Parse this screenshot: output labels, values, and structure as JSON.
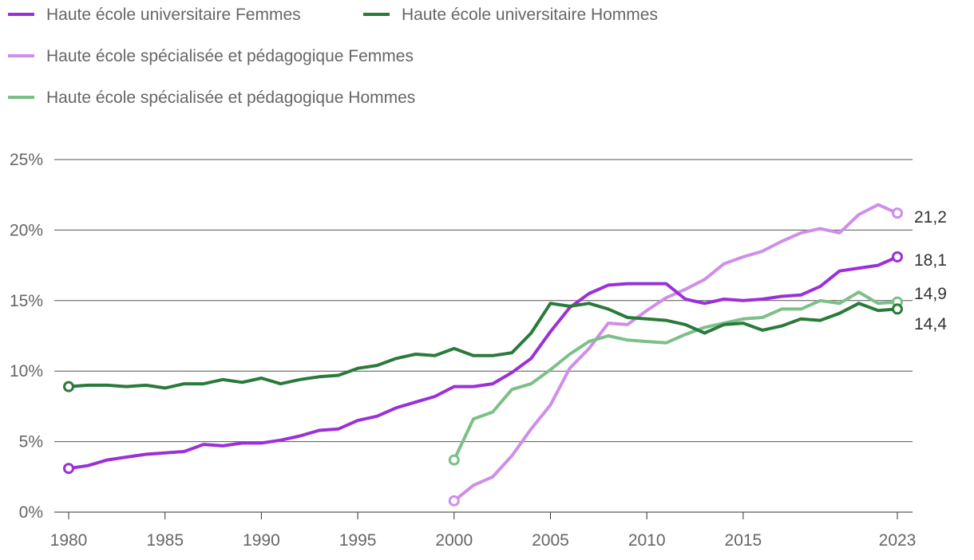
{
  "chart_data": {
    "type": "line",
    "title": "",
    "xlabel": "",
    "ylabel": "",
    "ylim": [
      0,
      25
    ],
    "xlim": [
      1980,
      2023
    ],
    "y_ticks": [
      {
        "value": 0,
        "label": "0%"
      },
      {
        "value": 5,
        "label": "5%"
      },
      {
        "value": 10,
        "label": "10%"
      },
      {
        "value": 15,
        "label": "15%"
      },
      {
        "value": 20,
        "label": "20%"
      },
      {
        "value": 25,
        "label": "25%"
      }
    ],
    "x_ticks": [
      {
        "value": 1980,
        "label": "1980"
      },
      {
        "value": 1985,
        "label": "1985"
      },
      {
        "value": 1990,
        "label": "1990"
      },
      {
        "value": 1995,
        "label": "1995"
      },
      {
        "value": 2000,
        "label": "2000"
      },
      {
        "value": 2005,
        "label": "2005"
      },
      {
        "value": 2010,
        "label": "2010"
      },
      {
        "value": 2015,
        "label": "2015"
      },
      {
        "value": 2023,
        "label": "2023"
      }
    ],
    "grid": true,
    "legend_position": "top-left",
    "series": [
      {
        "name": "Haute école universitaire Femmes",
        "color": "#9b30d9",
        "end_label": "18,1",
        "x": [
          1980,
          1981,
          1982,
          1983,
          1984,
          1985,
          1986,
          1987,
          1988,
          1989,
          1990,
          1991,
          1992,
          1993,
          1994,
          1995,
          1996,
          1997,
          1998,
          1999,
          2000,
          2001,
          2002,
          2003,
          2004,
          2005,
          2006,
          2007,
          2008,
          2009,
          2010,
          2011,
          2012,
          2013,
          2014,
          2015,
          2016,
          2017,
          2018,
          2019,
          2020,
          2021,
          2022,
          2023
        ],
        "y": [
          3.1,
          3.3,
          3.7,
          3.9,
          4.1,
          4.2,
          4.3,
          4.8,
          4.7,
          4.9,
          4.9,
          5.1,
          5.4,
          5.8,
          5.9,
          6.5,
          6.8,
          7.4,
          7.8,
          8.2,
          8.9,
          8.9,
          9.1,
          9.9,
          10.9,
          12.8,
          14.5,
          15.5,
          16.1,
          16.2,
          16.2,
          16.2,
          15.1,
          14.8,
          15.1,
          15.0,
          15.1,
          15.3,
          15.4,
          16.0,
          17.1,
          17.3,
          17.5,
          18.1
        ]
      },
      {
        "name": "Haute école universitaire Hommes",
        "color": "#2a7a3b",
        "end_label": "14,4",
        "x": [
          1980,
          1981,
          1982,
          1983,
          1984,
          1985,
          1986,
          1987,
          1988,
          1989,
          1990,
          1991,
          1992,
          1993,
          1994,
          1995,
          1996,
          1997,
          1998,
          1999,
          2000,
          2001,
          2002,
          2003,
          2004,
          2005,
          2006,
          2007,
          2008,
          2009,
          2010,
          2011,
          2012,
          2013,
          2014,
          2015,
          2016,
          2017,
          2018,
          2019,
          2020,
          2021,
          2022,
          2023
        ],
        "y": [
          8.9,
          9.0,
          9.0,
          8.9,
          9.0,
          8.8,
          9.1,
          9.1,
          9.4,
          9.2,
          9.5,
          9.1,
          9.4,
          9.6,
          9.7,
          10.2,
          10.4,
          10.9,
          11.2,
          11.1,
          11.6,
          11.1,
          11.1,
          11.3,
          12.7,
          14.8,
          14.6,
          14.8,
          14.4,
          13.8,
          13.7,
          13.6,
          13.3,
          12.7,
          13.3,
          13.4,
          12.9,
          13.2,
          13.7,
          13.6,
          14.1,
          14.8,
          14.3,
          14.4
        ]
      },
      {
        "name": "Haute école spécialisée et pédagogique Femmes",
        "color": "#cf8ee8",
        "end_label": "21,2",
        "x": [
          2000,
          2001,
          2002,
          2003,
          2004,
          2005,
          2006,
          2007,
          2008,
          2009,
          2010,
          2011,
          2012,
          2013,
          2014,
          2015,
          2016,
          2017,
          2018,
          2019,
          2020,
          2021,
          2022,
          2023
        ],
        "y": [
          0.8,
          1.9,
          2.5,
          4.0,
          5.9,
          7.6,
          10.2,
          11.6,
          13.4,
          13.3,
          14.3,
          15.2,
          15.8,
          16.5,
          17.6,
          18.1,
          18.5,
          19.2,
          19.8,
          20.1,
          19.8,
          21.1,
          21.8,
          21.2
        ]
      },
      {
        "name": "Haute école spécialisée et pédagogique Hommes",
        "color": "#7cbf88",
        "end_label": "14,9",
        "x": [
          2000,
          2001,
          2002,
          2003,
          2004,
          2005,
          2006,
          2007,
          2008,
          2009,
          2010,
          2011,
          2012,
          2013,
          2014,
          2015,
          2016,
          2017,
          2018,
          2019,
          2020,
          2021,
          2022,
          2023
        ],
        "y": [
          3.7,
          6.6,
          7.1,
          8.7,
          9.1,
          10.1,
          11.2,
          12.1,
          12.5,
          12.2,
          12.1,
          12.0,
          12.6,
          13.1,
          13.4,
          13.7,
          13.8,
          14.4,
          14.4,
          15.0,
          14.8,
          15.6,
          14.8,
          14.9
        ]
      }
    ]
  }
}
